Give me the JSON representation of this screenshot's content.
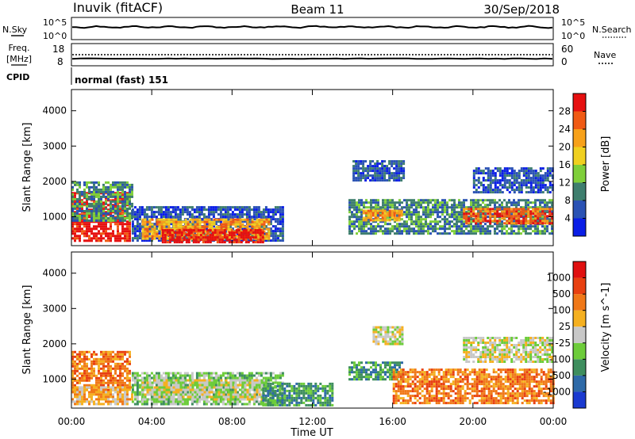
{
  "header": {
    "station": "Inuvik (fitACF)",
    "beam": "Beam 11",
    "date": "30/Sep/2018"
  },
  "summary_panels": {
    "nsky_label": "N.Sky",
    "nsearch_label": "N.Search",
    "nsky_ticks": [
      "10^5",
      "10^0"
    ],
    "nsearch_ticks": [
      "10^5",
      "10^0"
    ],
    "freq_label": "Freq.",
    "freq_unit": "[MHz]",
    "freq_ticks": [
      "18",
      "8"
    ],
    "nave_label": "Nave",
    "nave_ticks": [
      "60",
      "0"
    ],
    "cpid_label": "CPID",
    "cpid_value": "normal (fast) 151"
  },
  "chart_data": [
    {
      "type": "heatmap",
      "name": "power",
      "ylabel": "Slant Range [km]",
      "xlabel": "Time UT",
      "ylim": [
        180,
        4600
      ],
      "xlim_hours": [
        0,
        24
      ],
      "x_tick_labels": [
        "00:00",
        "04:00",
        "08:00",
        "12:00",
        "16:00",
        "20:00",
        "00:00"
      ],
      "y_tick_labels": [
        "1000",
        "2000",
        "3000",
        "4000"
      ],
      "colorbar_label": "Power [dB]",
      "colorbar_ticks": [
        "4",
        "8",
        "12",
        "16",
        "20",
        "24",
        "28"
      ],
      "colorbar_colors": [
        "#0a1ee6",
        "#2a52b4",
        "#3e7e6e",
        "#7fcf3a",
        "#f0d020",
        "#f7a11a",
        "#f05a14",
        "#e61010"
      ],
      "regions": [
        {
          "t0": 0.0,
          "t1": 2.9,
          "r0": 300,
          "r1": 1700,
          "level": 7
        },
        {
          "t0": 0.0,
          "t1": 3.0,
          "r0": 900,
          "r1": 2000,
          "level": 2
        },
        {
          "t0": 3.0,
          "t1": 10.5,
          "r0": 300,
          "r1": 1300,
          "level": 1
        },
        {
          "t0": 3.5,
          "t1": 9.8,
          "r0": 400,
          "r1": 950,
          "level": 5
        },
        {
          "t0": 4.5,
          "t1": 9.5,
          "r0": 300,
          "r1": 650,
          "level": 7
        },
        {
          "t0": 13.8,
          "t1": 24.0,
          "r0": 500,
          "r1": 1500,
          "level": 2
        },
        {
          "t0": 14.5,
          "t1": 16.5,
          "r0": 900,
          "r1": 1200,
          "level": 5
        },
        {
          "t0": 14.0,
          "t1": 16.5,
          "r0": 2000,
          "r1": 2600,
          "level": 1
        },
        {
          "t0": 19.5,
          "t1": 24.0,
          "r0": 800,
          "r1": 1250,
          "level": 6
        },
        {
          "t0": 20.0,
          "t1": 24.0,
          "r0": 1700,
          "r1": 2400,
          "level": 1
        }
      ]
    },
    {
      "type": "heatmap",
      "name": "velocity",
      "ylabel": "Slant Range [km]",
      "xlabel": "Time UT",
      "ylim": [
        180,
        4600
      ],
      "xlim_hours": [
        0,
        24
      ],
      "x_tick_labels": [
        "00:00",
        "04:00",
        "08:00",
        "12:00",
        "16:00",
        "20:00",
        "00:00"
      ],
      "y_tick_labels": [
        "1000",
        "2000",
        "3000",
        "4000"
      ],
      "colorbar_label": "Velocity [m s^-1]",
      "colorbar_ticks": [
        "1000",
        "500",
        "100",
        "25",
        "-25",
        "-100",
        "-500",
        "-1000"
      ],
      "colorbar_colors": [
        "#1a3ad0",
        "#2e6aa8",
        "#3e8e5e",
        "#6dcc3a",
        "#c8c8c8",
        "#f5b020",
        "#f07818",
        "#e84010",
        "#e01010"
      ],
      "regions": [
        {
          "t0": 0.0,
          "t1": 2.9,
          "r0": 700,
          "r1": 1800,
          "level": 6
        },
        {
          "t0": 0.0,
          "t1": 3.0,
          "r0": 300,
          "r1": 800,
          "level": 5
        },
        {
          "t0": 3.0,
          "t1": 10.5,
          "r0": 300,
          "r1": 1200,
          "level": 3
        },
        {
          "t0": 3.5,
          "t1": 9.5,
          "r0": 400,
          "r1": 1000,
          "level": 4
        },
        {
          "t0": 9.5,
          "t1": 13.0,
          "r0": 250,
          "r1": 900,
          "level": 2
        },
        {
          "t0": 13.8,
          "t1": 16.5,
          "r0": 1000,
          "r1": 1500,
          "level": 2
        },
        {
          "t0": 15.0,
          "t1": 16.5,
          "r0": 2000,
          "r1": 2500,
          "level": 4
        },
        {
          "t0": 16.0,
          "t1": 24.0,
          "r0": 300,
          "r1": 1300,
          "level": 6
        },
        {
          "t0": 19.5,
          "t1": 24.0,
          "r0": 1500,
          "r1": 2200,
          "level": 4
        }
      ]
    }
  ]
}
